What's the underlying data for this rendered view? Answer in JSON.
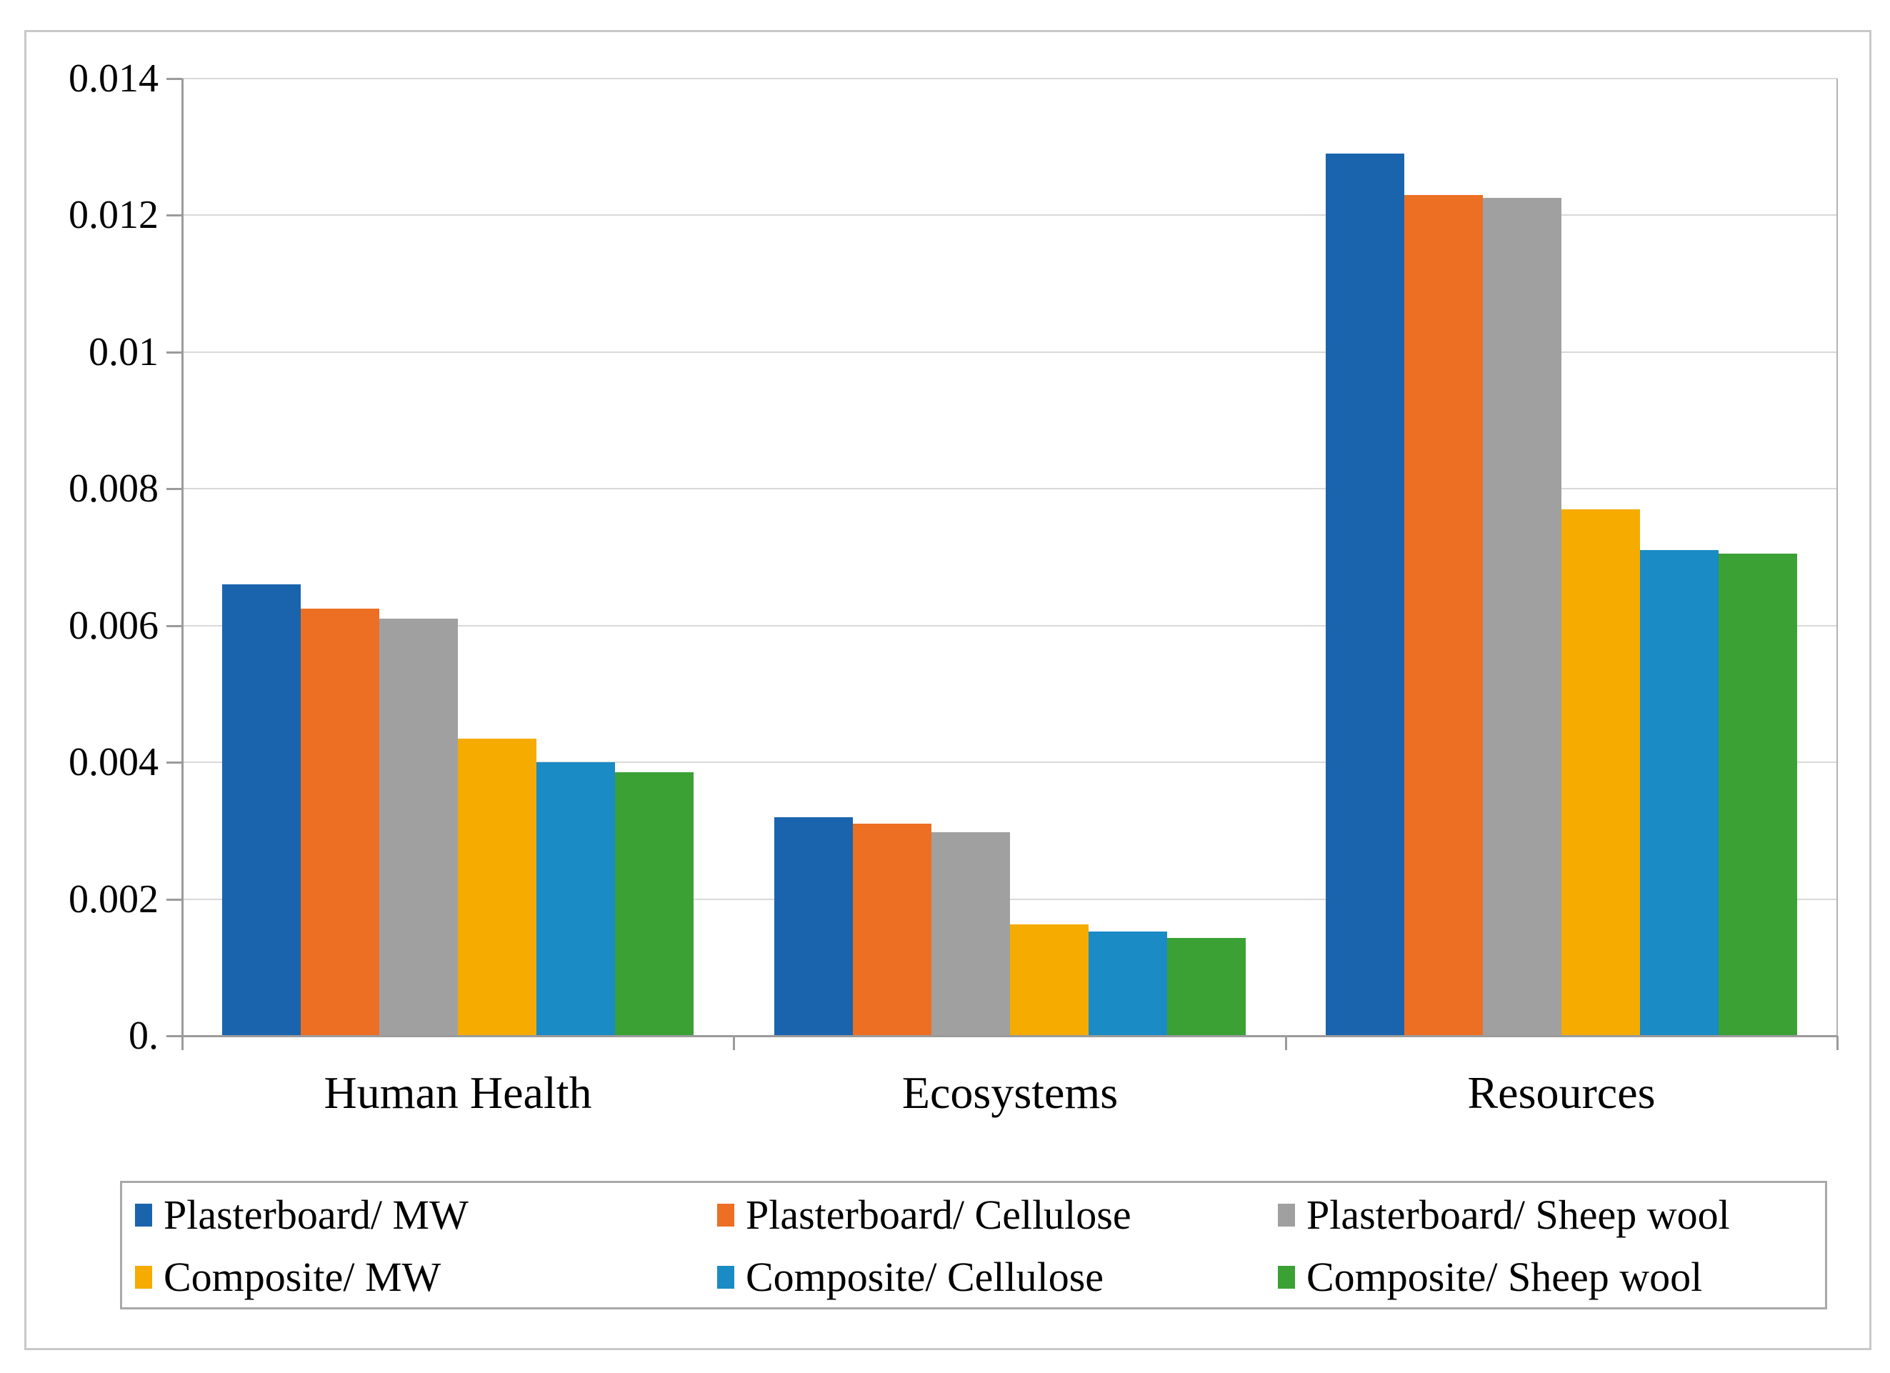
{
  "chart_data": {
    "type": "bar",
    "title": "",
    "xlabel": "",
    "ylabel": "",
    "categories": [
      "Human Health",
      "Ecosystems",
      "Resources"
    ],
    "series": [
      {
        "name": "Plasterboard/ MW",
        "color": "#1a64ae",
        "values": [
          0.0066,
          0.0032,
          0.0129
        ]
      },
      {
        "name": "Plasterboard/ Cellulose",
        "color": "#ec6f24",
        "values": [
          0.00625,
          0.0031,
          0.0123
        ]
      },
      {
        "name": "Plasterboard/ Sheep wool",
        "color": "#a0a0a0",
        "values": [
          0.0061,
          0.00298,
          0.01225
        ]
      },
      {
        "name": "Composite/ MW",
        "color": "#f5ab00",
        "values": [
          0.00435,
          0.00163,
          0.0077
        ]
      },
      {
        "name": "Composite/ Cellulose",
        "color": "#1a8bc4",
        "values": [
          0.004,
          0.00153,
          0.0071
        ]
      },
      {
        "name": "Composite/ Sheep wool",
        "color": "#3ba135",
        "values": [
          0.00385,
          0.00143,
          0.00705
        ]
      }
    ],
    "ylim": [
      0,
      0.014
    ],
    "ytick_step": 0.002,
    "ytick_labels": [
      "0.",
      "0.002",
      "0.004",
      "0.006",
      "0.008",
      "0.01",
      "0.012",
      "0.014"
    ],
    "grid": true,
    "legend_position": "bottom"
  },
  "style_colors": {
    "gridline": "#d9d9d9",
    "axis": "#9b9b9b",
    "frame_border": "#c9c9c9",
    "legend_border": "#a9a9a9"
  }
}
